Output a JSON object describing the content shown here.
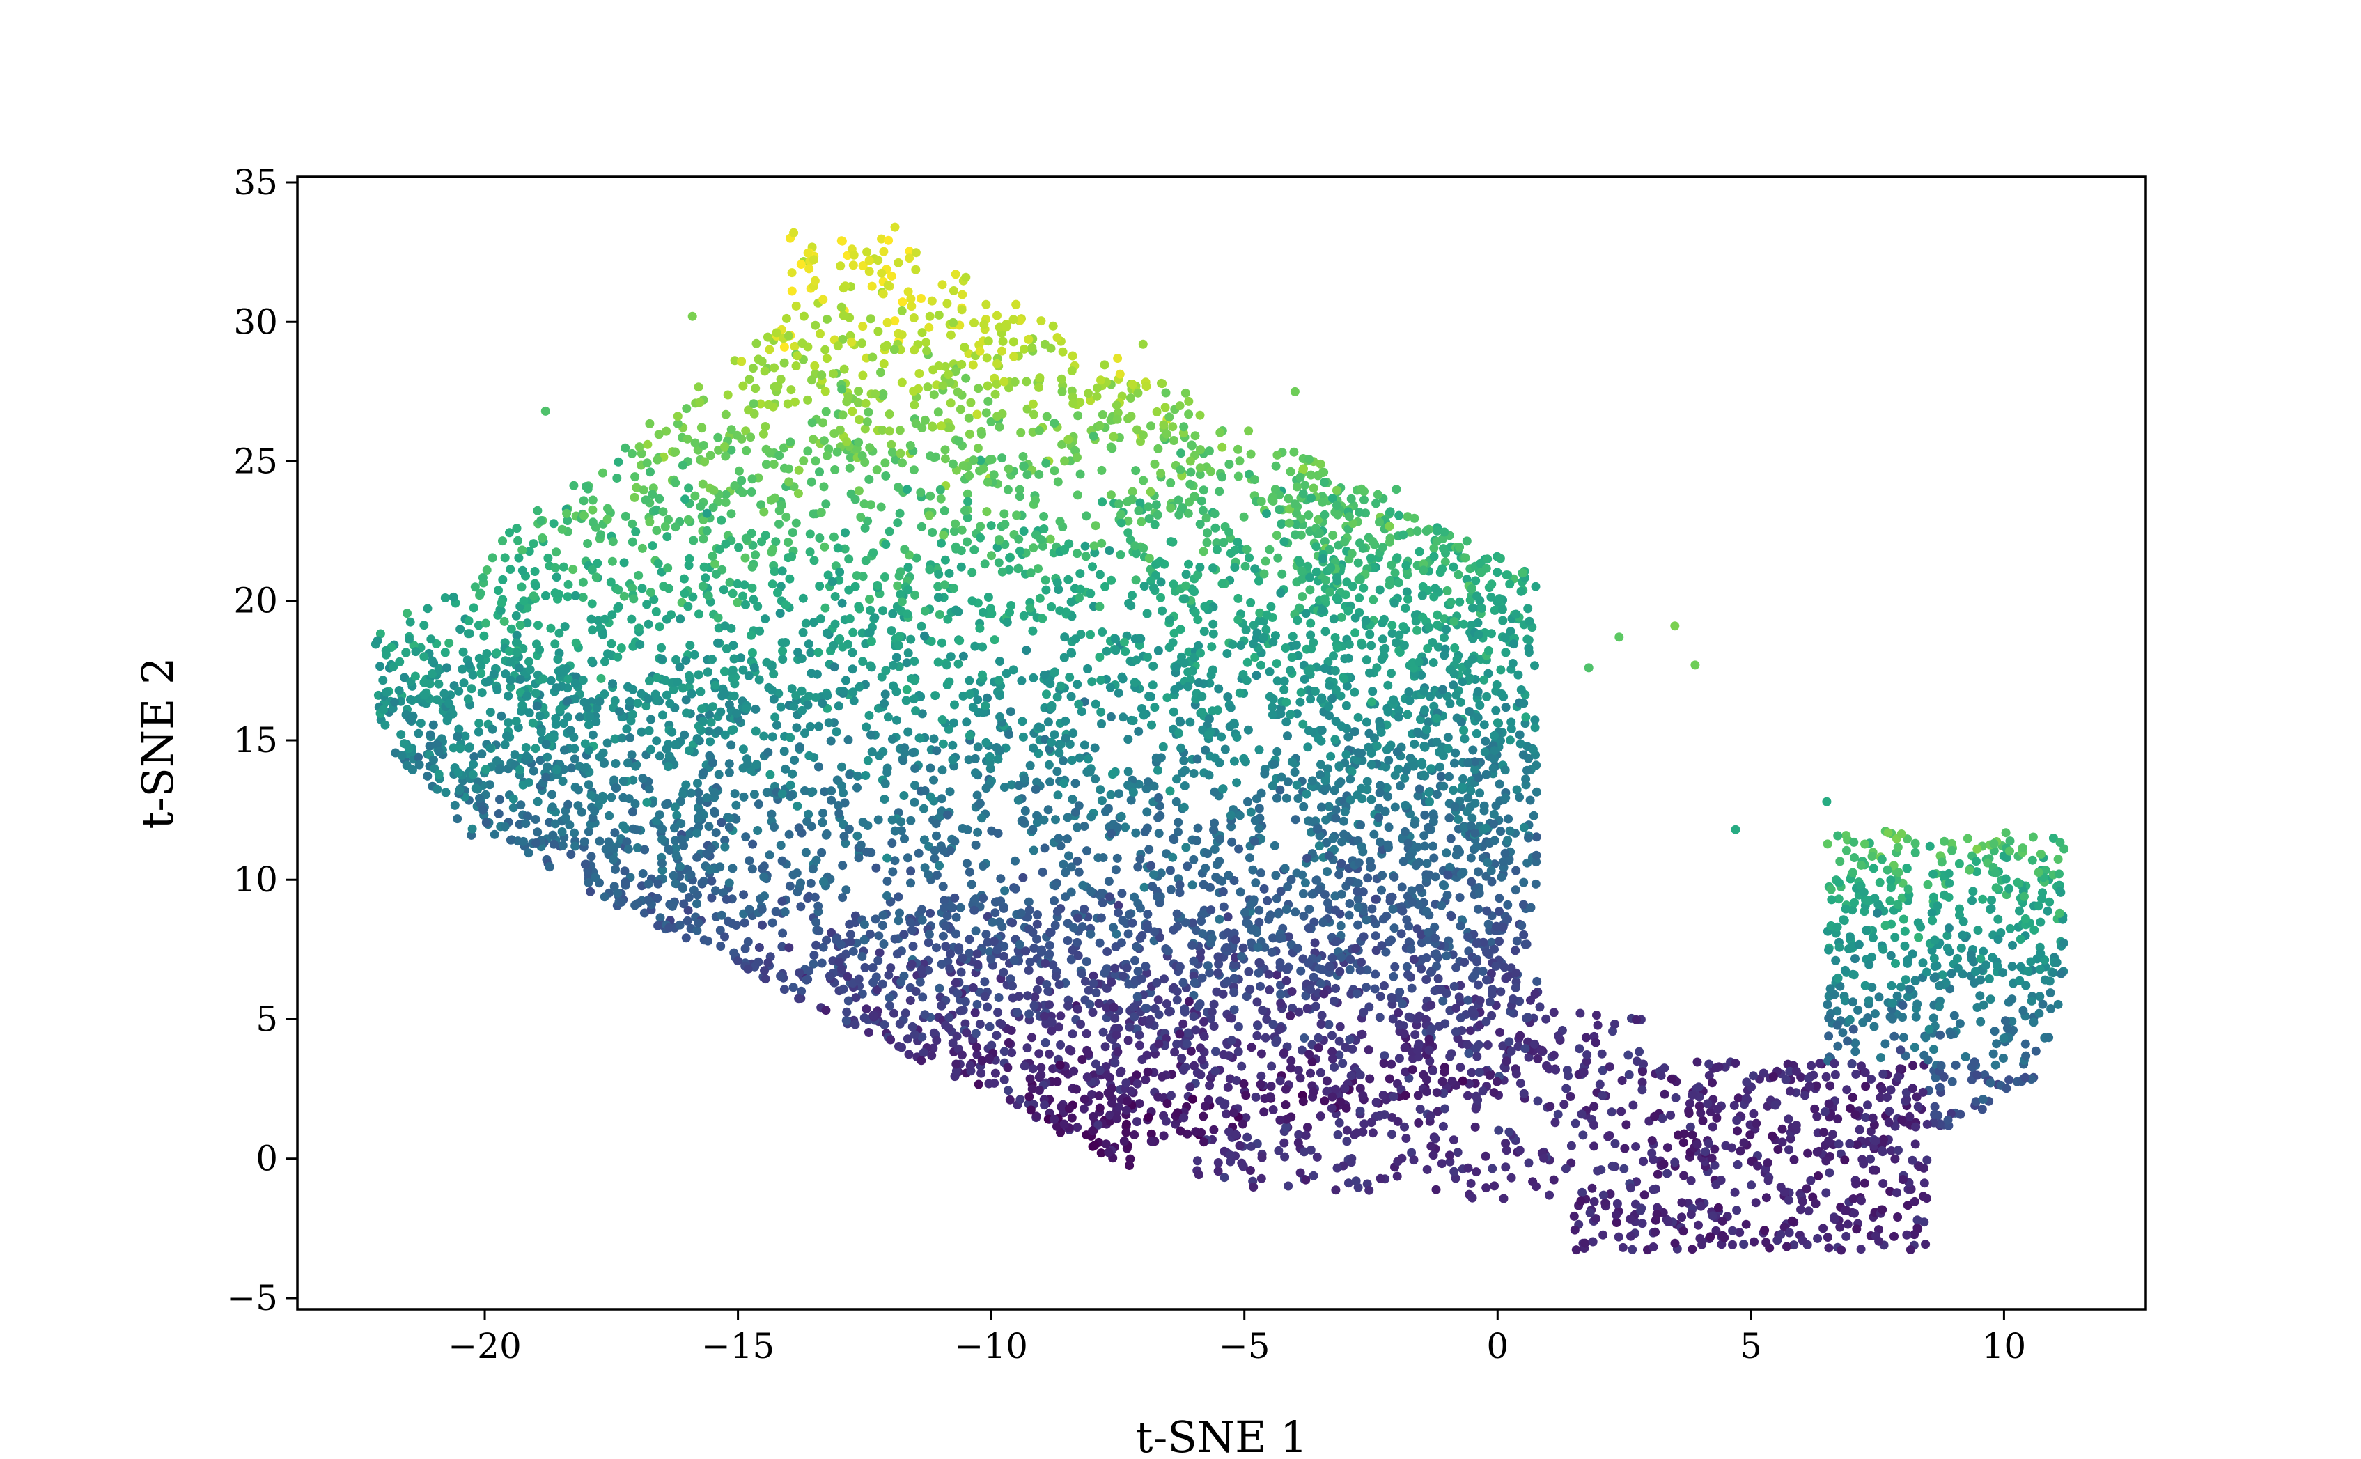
{
  "chart_data": {
    "type": "scatter",
    "title": "",
    "xlabel": "t-SNE 1",
    "ylabel": "t-SNE 2",
    "xlim": [
      -23.7,
      12.8
    ],
    "ylim": [
      -5.4,
      35.2
    ],
    "xticks": [
      -20,
      -15,
      -10,
      -5,
      0,
      5,
      10
    ],
    "xtick_labels": [
      "−20",
      "−15",
      "−10",
      "−5",
      "0",
      "5",
      "10"
    ],
    "yticks": [
      -5,
      0,
      5,
      10,
      15,
      20,
      25,
      30,
      35
    ],
    "ytick_labels": [
      "−5",
      "0",
      "5",
      "10",
      "15",
      "20",
      "25",
      "30",
      "35"
    ],
    "grid": false,
    "colormap": "viridis",
    "color_encoding": "continuous value per point (roughly tracks t-SNE 2)",
    "approx_point_count": 7000,
    "clusters": [
      {
        "name": "main-blob",
        "center": [
          -9.5,
          14.5
        ],
        "spread": [
          5.5,
          8.5
        ]
      },
      {
        "name": "bottom-bridge",
        "center": [
          -1.5,
          3.0
        ],
        "spread": [
          3.0,
          1.5
        ]
      },
      {
        "name": "right-hook",
        "center": [
          5.5,
          0.0
        ],
        "spread": [
          2.5,
          1.5
        ]
      },
      {
        "name": "right-arm",
        "center": [
          9.0,
          6.5
        ],
        "spread": [
          1.3,
          3.5
        ]
      }
    ],
    "points": [
      {
        "x": -22.0,
        "y": 16.1,
        "v": 0.55
      },
      {
        "x": -21.2,
        "y": 18.0,
        "v": 0.6
      },
      {
        "x": -20.5,
        "y": 13.2,
        "v": 0.45
      },
      {
        "x": -19.6,
        "y": 11.9,
        "v": 0.4
      },
      {
        "x": -18.8,
        "y": 26.8,
        "v": 0.72
      },
      {
        "x": -18.0,
        "y": 24.1,
        "v": 0.68
      },
      {
        "x": -17.3,
        "y": 9.2,
        "v": 0.3
      },
      {
        "x": -16.4,
        "y": 22.3,
        "v": 0.64
      },
      {
        "x": -15.9,
        "y": 30.2,
        "v": 0.8
      },
      {
        "x": -14.8,
        "y": 6.8,
        "v": 0.2
      },
      {
        "x": -14.0,
        "y": 29.5,
        "v": 0.85
      },
      {
        "x": -13.9,
        "y": 33.2,
        "v": 0.95
      },
      {
        "x": -13.1,
        "y": 26.0,
        "v": 0.8
      },
      {
        "x": -12.3,
        "y": 19.4,
        "v": 0.55
      },
      {
        "x": -11.9,
        "y": 33.4,
        "v": 0.95
      },
      {
        "x": -11.2,
        "y": 14.0,
        "v": 0.4
      },
      {
        "x": -10.5,
        "y": 31.6,
        "v": 0.9
      },
      {
        "x": -10.0,
        "y": 22.7,
        "v": 0.65
      },
      {
        "x": -9.6,
        "y": 4.6,
        "v": 0.1
      },
      {
        "x": -9.1,
        "y": 12.3,
        "v": 0.38
      },
      {
        "x": -8.6,
        "y": 27.5,
        "v": 0.8
      },
      {
        "x": -8.0,
        "y": 1.0,
        "v": 0.05
      },
      {
        "x": -7.4,
        "y": 17.2,
        "v": 0.5
      },
      {
        "x": -7.0,
        "y": 29.2,
        "v": 0.85
      },
      {
        "x": -6.4,
        "y": 8.2,
        "v": 0.25
      },
      {
        "x": -5.8,
        "y": 0.6,
        "v": 0.05
      },
      {
        "x": -5.3,
        "y": 24.9,
        "v": 0.72
      },
      {
        "x": -4.6,
        "y": 13.8,
        "v": 0.4
      },
      {
        "x": -4.0,
        "y": 27.5,
        "v": 0.78
      },
      {
        "x": -3.2,
        "y": 6.1,
        "v": 0.2
      },
      {
        "x": -2.6,
        "y": 19.3,
        "v": 0.55
      },
      {
        "x": -2.0,
        "y": 24.0,
        "v": 0.7
      },
      {
        "x": -1.4,
        "y": 2.4,
        "v": 0.1
      },
      {
        "x": -0.8,
        "y": 15.8,
        "v": 0.45
      },
      {
        "x": -0.2,
        "y": 21.5,
        "v": 0.65
      },
      {
        "x": 0.5,
        "y": 21.0,
        "v": 0.7
      },
      {
        "x": 1.2,
        "y": 4.4,
        "v": 0.15
      },
      {
        "x": 1.8,
        "y": 17.6,
        "v": 0.72
      },
      {
        "x": 2.4,
        "y": 18.7,
        "v": 0.75
      },
      {
        "x": 2.9,
        "y": -1.3,
        "v": 0.08
      },
      {
        "x": 3.5,
        "y": 19.1,
        "v": 0.8
      },
      {
        "x": 3.9,
        "y": 17.7,
        "v": 0.78
      },
      {
        "x": 4.2,
        "y": -2.8,
        "v": 0.05
      },
      {
        "x": 4.7,
        "y": 11.8,
        "v": 0.62
      },
      {
        "x": 5.3,
        "y": -3.0,
        "v": 0.08
      },
      {
        "x": 5.9,
        "y": 1.2,
        "v": 0.12
      },
      {
        "x": 6.5,
        "y": 12.8,
        "v": 0.62
      },
      {
        "x": 7.0,
        "y": 3.4,
        "v": 0.2
      },
      {
        "x": 7.5,
        "y": 8.8,
        "v": 0.45
      },
      {
        "x": 8.0,
        "y": 5.5,
        "v": 0.3
      },
      {
        "x": 8.6,
        "y": 10.2,
        "v": 0.6
      },
      {
        "x": 9.2,
        "y": 8.5,
        "v": 0.55
      },
      {
        "x": 9.8,
        "y": 11.3,
        "v": 0.72
      },
      {
        "x": 10.4,
        "y": 9.4,
        "v": 0.68
      },
      {
        "x": 11.1,
        "y": 8.8,
        "v": 0.7
      }
    ]
  }
}
